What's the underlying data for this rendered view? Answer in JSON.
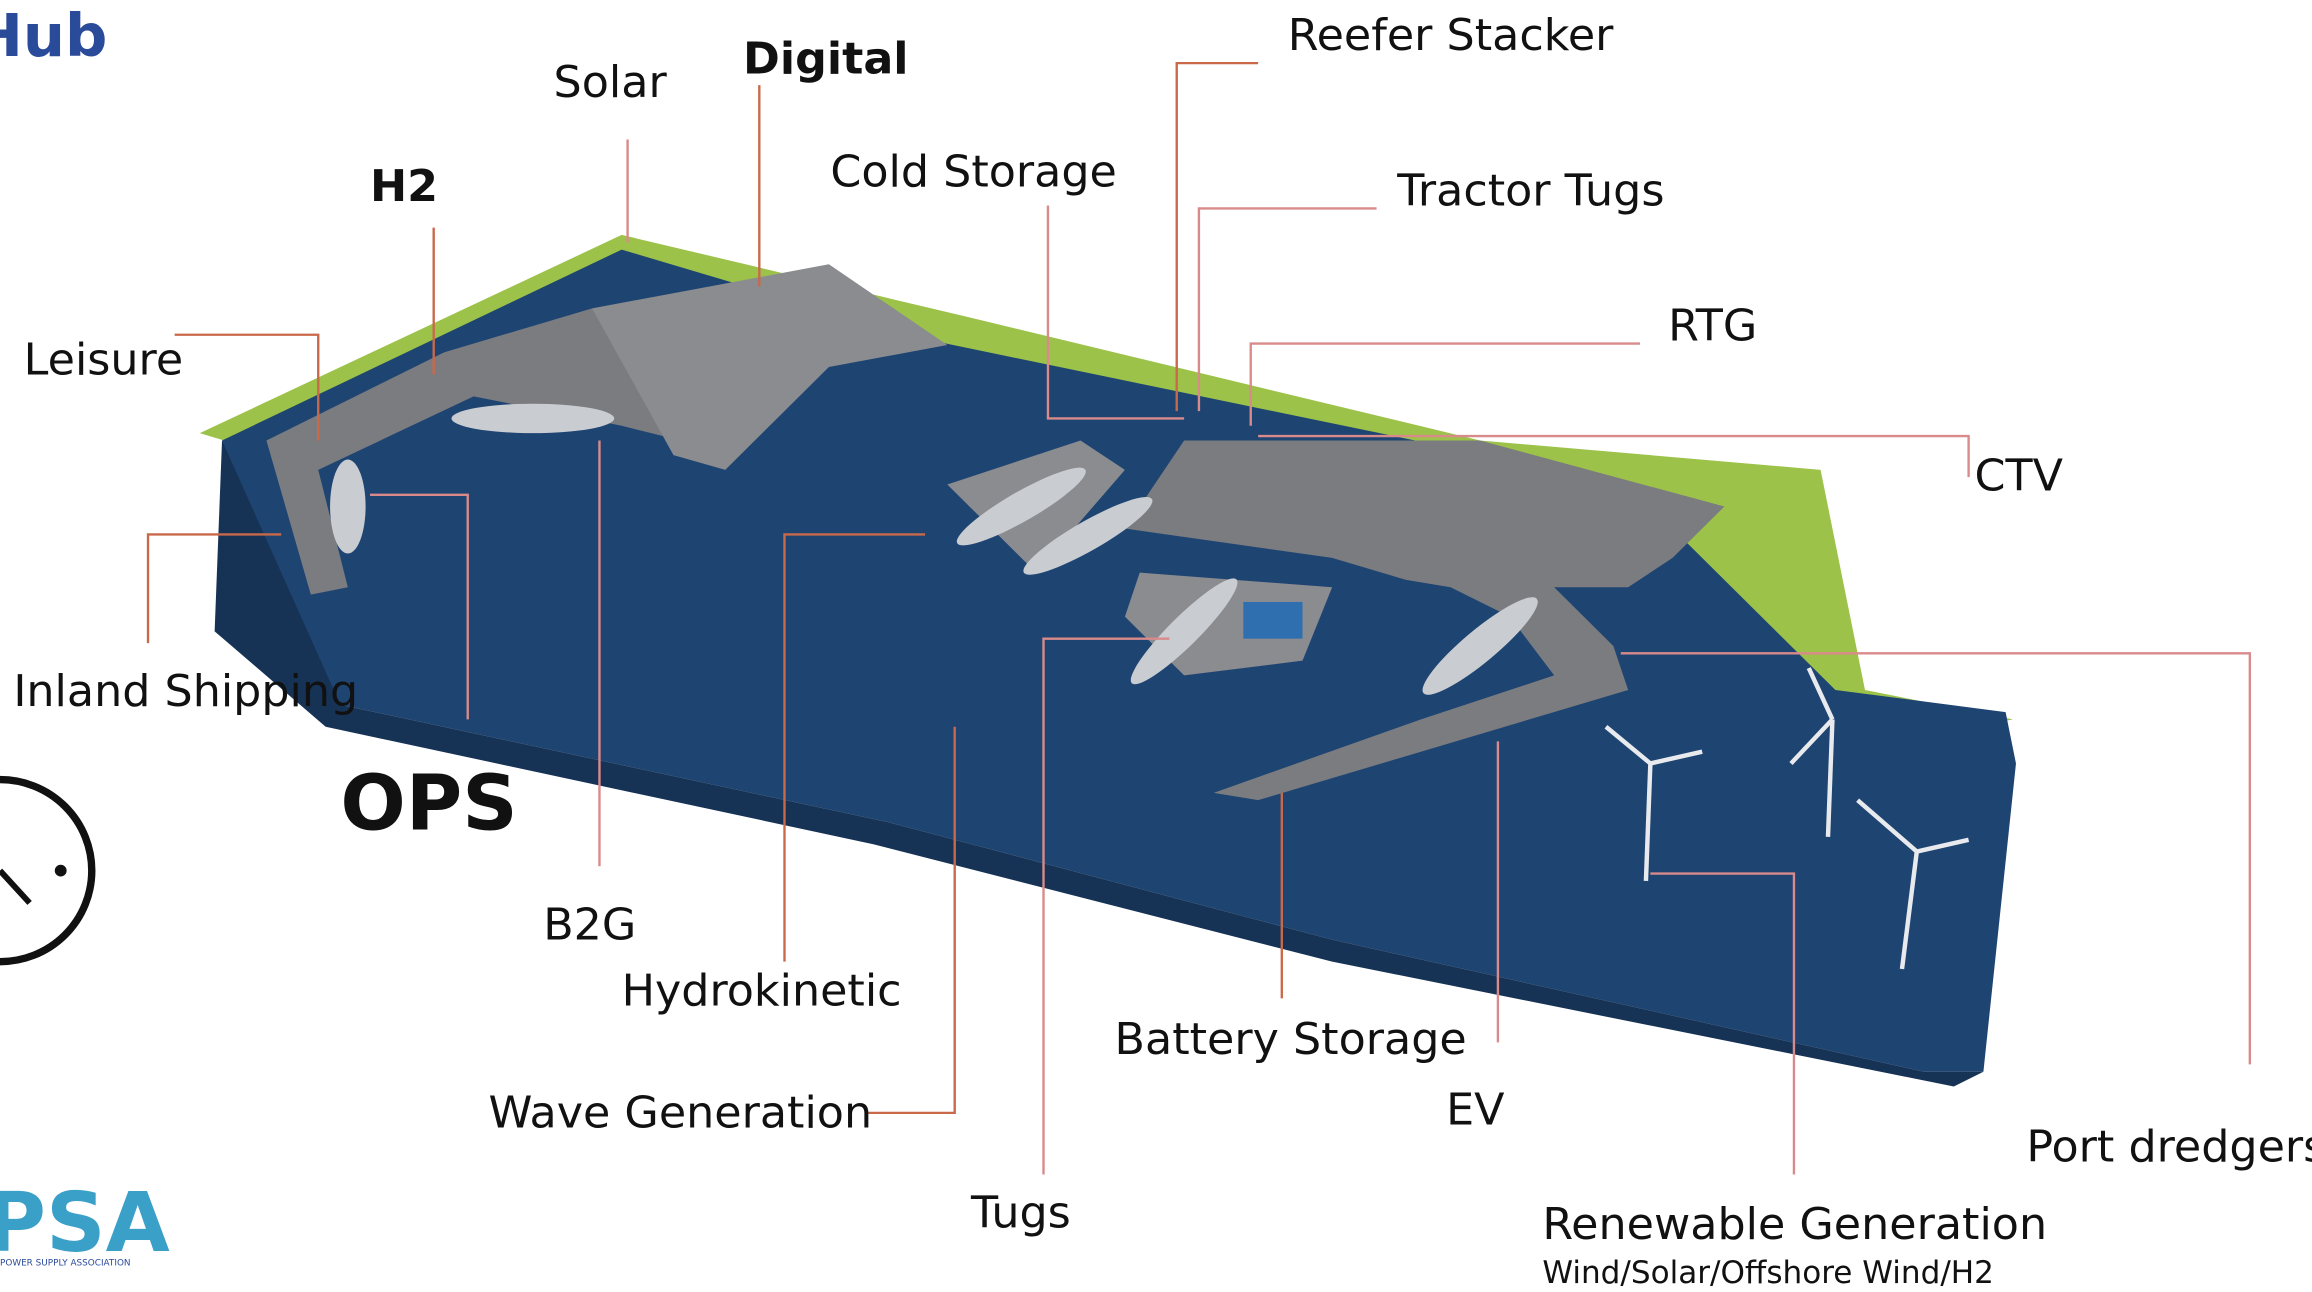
{
  "header": {
    "title": "Hub"
  },
  "labels": [
    "Solar",
    "Digital",
    "Reefer Stacker",
    "H2",
    "Cold Storage",
    "Tractor Tugs",
    "Leisure",
    "RTG",
    "CTV",
    "Inland Shipping",
    "OPS",
    "B2G",
    "Hydrokinetic",
    "Battery Storage",
    "Wave Generation",
    "EV",
    "Port dredgers",
    "Tugs",
    "Renewable Generation"
  ],
  "renewable_subtitle": "Wind/Solar/Offshore Wind/H2",
  "logo": {
    "text": "PSA",
    "tagline": "POWER SUPPLY ASSOCIATION"
  }
}
